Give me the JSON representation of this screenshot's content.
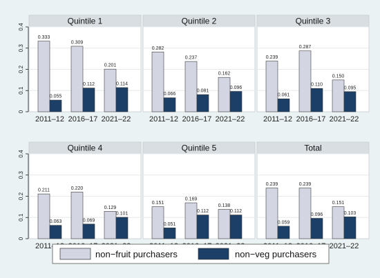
{
  "chart_data": {
    "type": "bar",
    "categories": [
      "2011–12",
      "2016–17",
      "2021–22"
    ],
    "ylim": [
      0,
      0.4
    ],
    "yticks": [
      "0",
      "0.1",
      "0.2",
      "0.3",
      "0.4"
    ],
    "grid": true,
    "legend_position": "bottom",
    "series": [
      {
        "name": "non−fruit purchasers",
        "color": "#d3d6e2"
      },
      {
        "name": "non−veg purchasers",
        "color": "#1b3f66"
      }
    ],
    "panels": [
      {
        "title": "Quintile 1",
        "values": [
          [
            0.333,
            0.309,
            0.201
          ],
          [
            0.055,
            0.112,
            0.114
          ]
        ],
        "labels": [
          [
            "0.333",
            "0.309",
            "0.201"
          ],
          [
            "0.055",
            "0.112",
            "0.114"
          ]
        ]
      },
      {
        "title": "Quintile 2",
        "values": [
          [
            0.282,
            0.237,
            0.162
          ],
          [
            0.066,
            0.081,
            0.096
          ]
        ],
        "labels": [
          [
            "0.282",
            "0.237",
            "0.162"
          ],
          [
            "0.066",
            "0.081",
            "0.096"
          ]
        ]
      },
      {
        "title": "Quintile 3",
        "values": [
          [
            0.239,
            0.287,
            0.15
          ],
          [
            0.061,
            0.11,
            0.095
          ]
        ],
        "labels": [
          [
            "0.239",
            "0.287",
            "0.150"
          ],
          [
            "0.061",
            "0.110",
            "0.095"
          ]
        ]
      },
      {
        "title": "Quintile 4",
        "values": [
          [
            0.211,
            0.22,
            0.129
          ],
          [
            0.063,
            0.069,
            0.101
          ]
        ],
        "labels": [
          [
            "0.211",
            "0.220",
            "0.129"
          ],
          [
            "0.063",
            "0.069",
            "0.101"
          ]
        ]
      },
      {
        "title": "Quintile 5",
        "values": [
          [
            0.151,
            0.169,
            0.138
          ],
          [
            0.051,
            0.112,
            0.112
          ]
        ],
        "labels": [
          [
            "0.151",
            "0.169",
            "0.138"
          ],
          [
            "0.051",
            "0.112",
            "0.112"
          ]
        ]
      },
      {
        "title": "Total",
        "values": [
          [
            0.239,
            0.239,
            0.151
          ],
          [
            0.059,
            0.096,
            0.103
          ]
        ],
        "labels": [
          [
            "0.239",
            "0.239",
            "0.151"
          ],
          [
            "0.059",
            "0.096",
            "0.103"
          ]
        ]
      }
    ]
  }
}
